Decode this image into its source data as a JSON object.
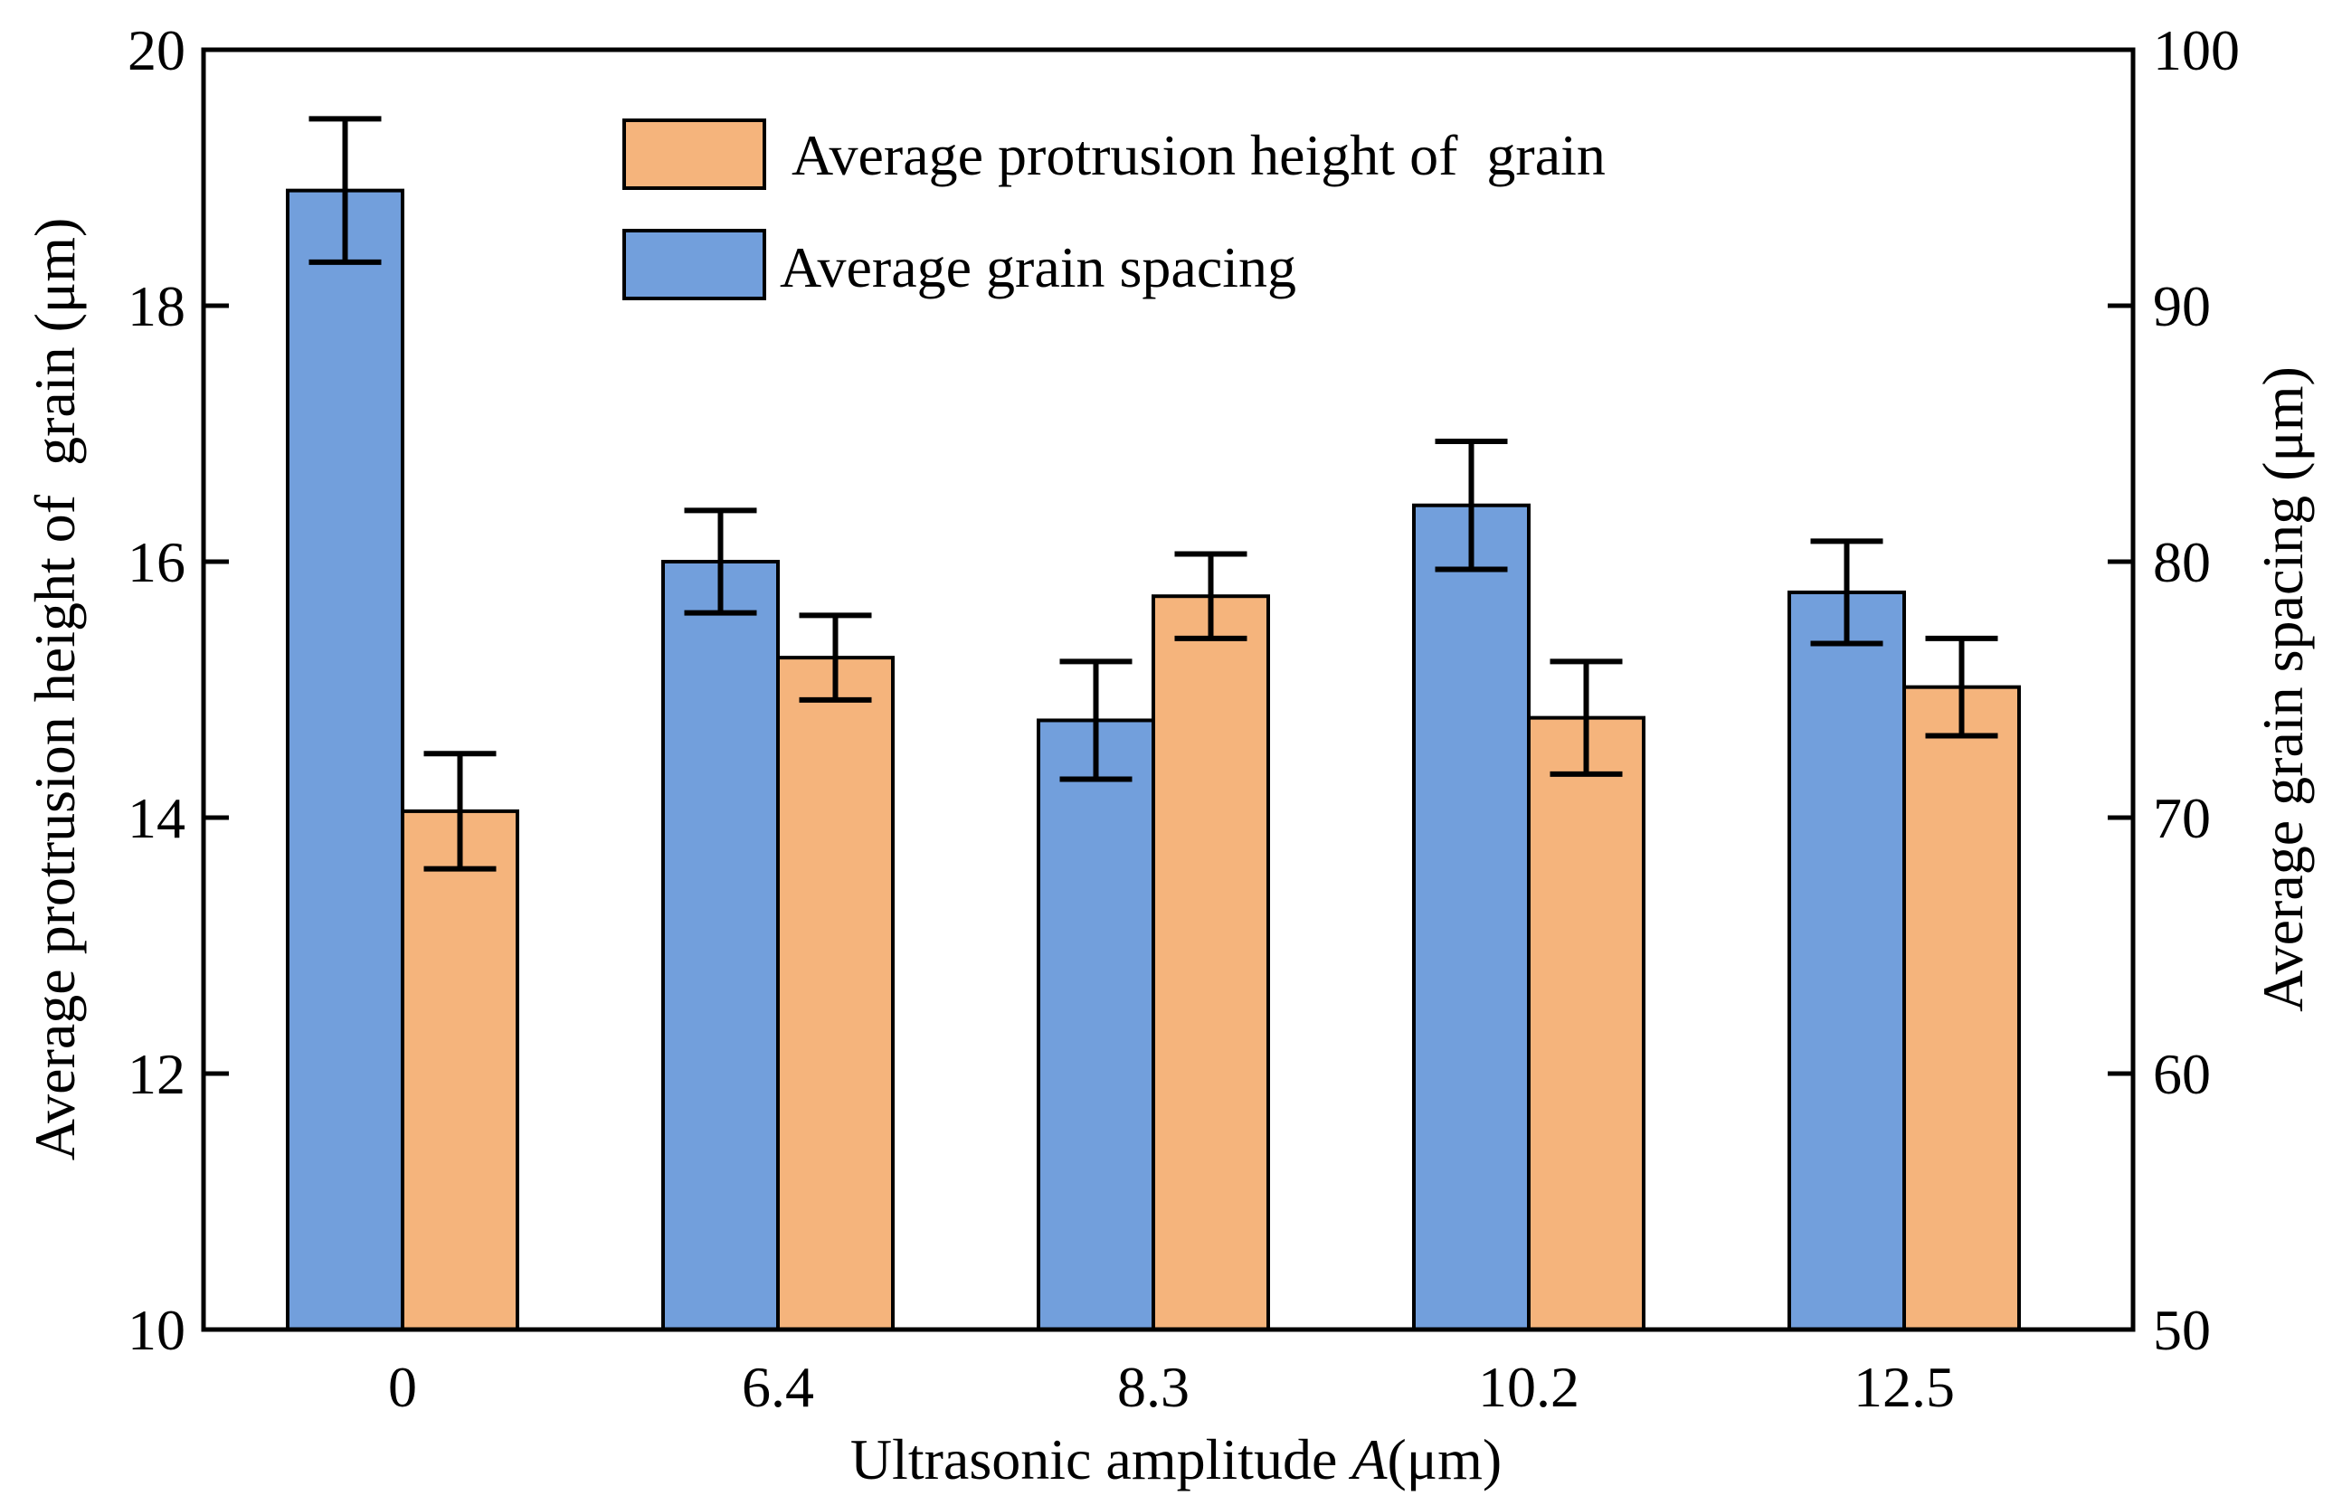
{
  "chart_data": {
    "type": "bar",
    "categories": [
      "0",
      "6.4",
      "8.3",
      "10.2",
      "12.5"
    ],
    "xlabel_prefix": "Ultrasonic amplitude ",
    "xlabel_var": "A",
    "xlabel_suffix": "(μm)",
    "ylabel": "Average protrusion height of  grain (μm)",
    "y2label": "Average grain spacing (μm)",
    "ylim": [
      10,
      20
    ],
    "y2lim": [
      50,
      100
    ],
    "yticks": [
      10,
      12,
      14,
      16,
      18,
      20
    ],
    "y2ticks": [
      50,
      60,
      70,
      80,
      90,
      100
    ],
    "series": [
      {
        "name": "Average grain spacing",
        "axis": "right",
        "color": "#729fdc",
        "values": [
          94.5,
          80.0,
          73.8,
          82.2,
          78.8
        ],
        "errors": [
          2.8,
          2.0,
          2.3,
          2.5,
          2.0
        ]
      },
      {
        "name": "Average protrusion height of  grain",
        "axis": "left",
        "color": "#f5b47c",
        "values": [
          14.05,
          15.25,
          15.73,
          14.78,
          15.02
        ],
        "errors": [
          0.45,
          0.33,
          0.33,
          0.44,
          0.38
        ]
      }
    ],
    "legend": [
      {
        "label": "Average protrusion height of  grain",
        "color": "#f5b47c"
      },
      {
        "label": "Average grain spacing",
        "color": "#729fdc"
      }
    ],
    "legend_position": "top-center"
  }
}
